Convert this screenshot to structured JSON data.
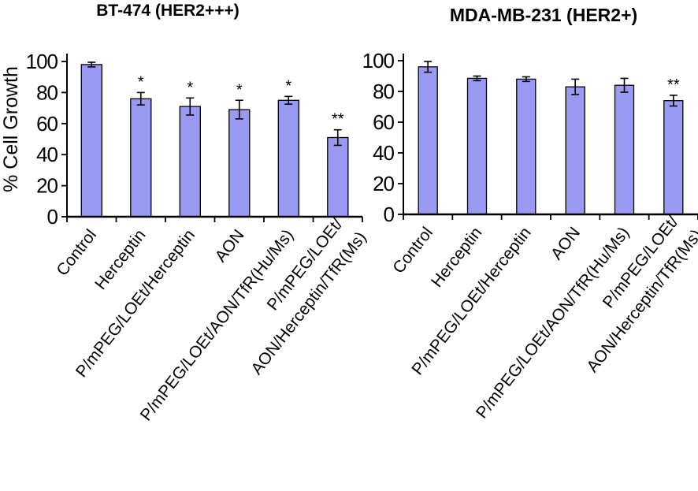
{
  "figure": {
    "background": "#ffffff"
  },
  "chart_data": [
    {
      "type": "bar",
      "title": "BT-474 (HER2+++)",
      "ylabel": "% Cell Growth",
      "xlabel": "",
      "ylim": [
        0,
        100
      ],
      "yticks": [
        0,
        20,
        40,
        60,
        80,
        100
      ],
      "grid": false,
      "legend": "none",
      "bar_color": "#9a9af2",
      "bar_border_color": "#000000",
      "error_bar_color": "#000000",
      "categories": [
        "Control",
        "Herceptin",
        "P/mPEG/LOEt/Herceptin",
        "AON",
        "P/mPEG/LOEt/AON/TfR(Hu/Ms)",
        [
          "P/mPEG/LOEt/",
          "AON/Herceptin/TfR(Ms)"
        ]
      ],
      "values": [
        98,
        76,
        71,
        69,
        75,
        51
      ],
      "errors": [
        1.5,
        4,
        5.5,
        6,
        2.5,
        5
      ],
      "significance": [
        "",
        "*",
        "*",
        "*",
        "*",
        "**"
      ]
    },
    {
      "type": "bar",
      "title": "MDA-MB-231 (HER2+)",
      "ylabel": "",
      "xlabel": "",
      "ylim": [
        0,
        100
      ],
      "yticks": [
        0,
        20,
        40,
        60,
        80,
        100
      ],
      "grid": false,
      "legend": "none",
      "bar_color": "#9a9af2",
      "bar_border_color": "#000000",
      "error_bar_color": "#000000",
      "categories": [
        "Control",
        "Herceptin",
        "P/mPEG/LOEt/Herceptin",
        "AON",
        "P/mPEG/LOEt/AON/TfR(Hu/Ms)",
        [
          "P/mPEG/LOEt/",
          "AON/Herceptin/TfR(Ms)"
        ]
      ],
      "values": [
        96,
        88.5,
        88,
        83,
        84,
        74
      ],
      "errors": [
        3.5,
        1.5,
        1.5,
        5,
        4.5,
        3.5
      ],
      "significance": [
        "",
        "",
        "",
        "",
        "",
        "**"
      ]
    }
  ]
}
